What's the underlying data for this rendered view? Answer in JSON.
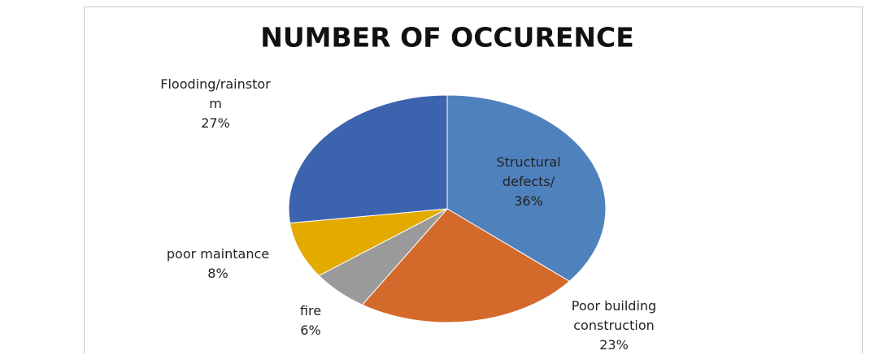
{
  "chart_data": {
    "type": "pie",
    "title": "NUMBER OF OCCURENCE",
    "categories": [
      "Structural defects/",
      "Poor building construction",
      "fire",
      "poor maintance",
      "Flooding/rainstorm"
    ],
    "values": [
      36,
      23,
      6,
      8,
      27
    ],
    "value_labels": [
      "36%",
      "23%",
      "6%",
      "8%",
      "27%"
    ],
    "colors": [
      "#4f81bd",
      "#d3692b",
      "#9a9a9a",
      "#e3aa00",
      "#3c63ad"
    ]
  }
}
